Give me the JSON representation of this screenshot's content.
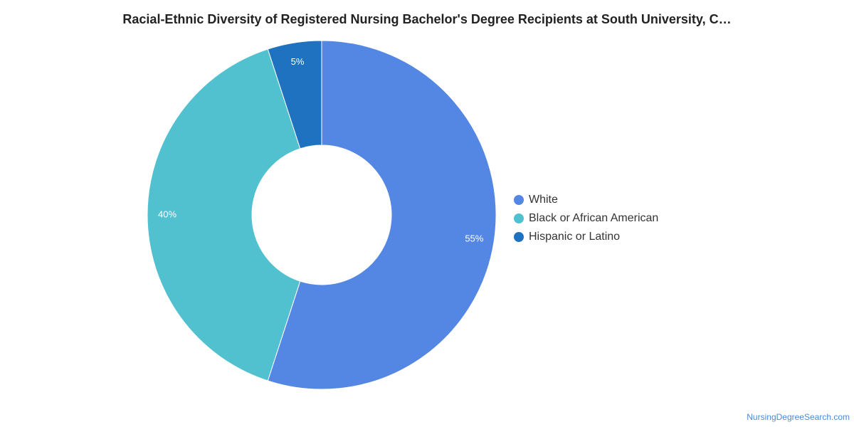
{
  "title": "Racial-Ethnic Diversity of Registered Nursing Bachelor's Degree Recipients at South University, C…",
  "source": "NursingDegreeSearch.com",
  "chart_data": {
    "type": "pie",
    "title": "Racial-Ethnic Diversity of Registered Nursing Bachelor's Degree Recipients at South University, C…",
    "legend_position": "right",
    "series": [
      {
        "name": "White",
        "value": 55,
        "label": "55%",
        "color": "#5486e3"
      },
      {
        "name": "Black or African American",
        "value": 40,
        "label": "40%",
        "color": "#52c1cf"
      },
      {
        "name": "Hispanic or Latino",
        "value": 5,
        "label": "5%",
        "color": "#1f72c0"
      }
    ]
  }
}
